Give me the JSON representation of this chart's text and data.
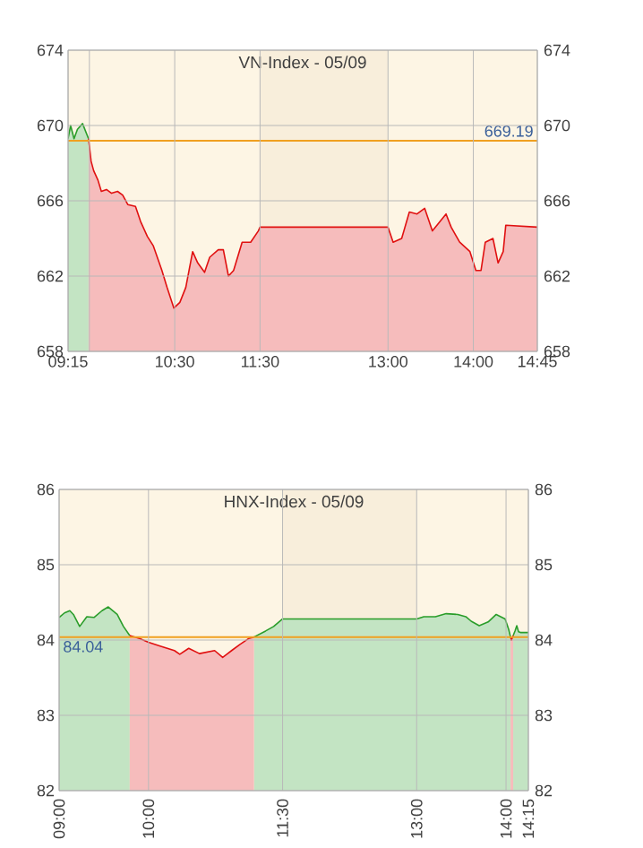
{
  "chart_data": [
    {
      "type": "area",
      "title": "VN-Index - 05/09",
      "xlim": [
        9.25,
        14.75
      ],
      "xticks": [
        {
          "value": 9.25,
          "label": "09:15"
        },
        {
          "value": 9.5,
          "label": null
        },
        {
          "value": 10.5,
          "label": "10:30"
        },
        {
          "value": 11.5,
          "label": "11:30"
        },
        {
          "value": 13,
          "label": "13:00"
        },
        {
          "value": 14,
          "label": "14:00"
        },
        {
          "value": 14.75,
          "label": "14:45"
        }
      ],
      "ylim": [
        658,
        674
      ],
      "yticks": [
        658,
        662,
        666,
        670,
        674
      ],
      "y2lim": [
        658,
        674
      ],
      "y2ticks": [
        658,
        662,
        666,
        670,
        674
      ],
      "grid": true,
      "bands": [
        {
          "axis": "x",
          "from": 11.5,
          "to": 13,
          "color": "#f8eedb"
        }
      ],
      "ref_lines": [
        {
          "axis": "y",
          "value": 669.19,
          "label": "669.19",
          "color": "#f0a020"
        }
      ],
      "series": [
        {
          "color": "#2a9d2a",
          "x": [
            9.25,
            9.28,
            9.32,
            9.36,
            9.42,
            9.49
          ],
          "values": [
            669.3,
            670.0,
            669.3,
            669.8,
            670.1,
            669.3
          ]
        },
        {
          "color": "#e01010",
          "x": [
            9.49,
            9.52,
            9.55,
            9.6,
            9.64,
            9.7,
            9.76,
            9.83,
            9.89,
            9.95,
            10.04,
            10.1,
            10.18,
            10.25,
            10.35,
            10.41,
            10.49,
            10.56,
            10.63,
            10.71,
            10.77,
            10.85,
            10.91,
            11.01,
            11.07,
            11.13,
            11.19,
            11.29,
            11.39,
            11.48,
            11.5,
            13.0,
            13.06,
            13.16,
            13.25,
            13.34,
            13.43,
            13.52,
            13.68,
            13.74,
            13.84,
            13.96,
            14.03,
            14.09,
            14.14,
            14.23,
            14.29,
            14.35,
            14.38,
            14.75
          ],
          "values": [
            669.3,
            668.1,
            667.6,
            667.1,
            666.5,
            666.6,
            666.4,
            666.5,
            666.3,
            665.8,
            665.7,
            664.9,
            664.1,
            663.6,
            662.3,
            661.4,
            660.3,
            660.6,
            661.4,
            663.3,
            662.7,
            662.2,
            663.0,
            663.4,
            663.4,
            662.0,
            662.3,
            663.8,
            663.8,
            664.4,
            664.6,
            664.6,
            663.8,
            664.0,
            665.4,
            665.3,
            665.6,
            664.4,
            665.3,
            664.6,
            663.8,
            663.3,
            662.3,
            662.3,
            663.8,
            664.0,
            662.7,
            663.3,
            664.7,
            664.6
          ]
        }
      ]
    },
    {
      "type": "area",
      "title": "HNX-Index - 05/09",
      "xlim": [
        9,
        14.25
      ],
      "xticks": [
        {
          "value": 9,
          "label": "09:00"
        },
        {
          "value": 10,
          "label": "10:00"
        },
        {
          "value": 11.5,
          "label": "11:30"
        },
        {
          "value": 13,
          "label": "13:00"
        },
        {
          "value": 14,
          "label": "14:00"
        },
        {
          "value": 14.25,
          "label": "14:15"
        }
      ],
      "ylim": [
        82,
        86
      ],
      "yticks": [
        82,
        83,
        84,
        85,
        86
      ],
      "y2lim": [
        82,
        86
      ],
      "y2ticks": [
        82,
        83,
        84,
        85,
        86
      ],
      "grid": true,
      "bands": [
        {
          "axis": "x",
          "from": 11.5,
          "to": 13,
          "color": "#f8eedb"
        }
      ],
      "ref_lines": [
        {
          "axis": "y",
          "value": 84.04,
          "label": "84.04",
          "color": "#f0a020"
        }
      ],
      "series": [
        {
          "color": "#2a9d2a",
          "x": [
            9.0,
            9.06,
            9.12,
            9.16,
            9.23,
            9.31,
            9.39,
            9.48,
            9.55,
            9.65,
            9.72,
            9.79,
            9.86,
            11.18,
            11.31,
            11.4,
            11.5,
            13.0,
            13.08,
            13.21,
            13.33,
            13.46,
            13.55,
            13.61,
            13.7,
            13.8,
            13.89,
            13.99,
            14.03,
            14.05,
            14.06,
            14.08,
            14.1,
            14.12,
            14.14,
            14.16,
            14.25
          ],
          "values": [
            84.3,
            84.36,
            84.39,
            84.34,
            84.18,
            84.31,
            84.3,
            84.39,
            84.44,
            84.34,
            84.18,
            84.06,
            null,
            84.04,
            84.12,
            84.18,
            84.28,
            84.28,
            84.31,
            84.31,
            84.35,
            84.34,
            84.31,
            84.25,
            84.19,
            84.24,
            84.34,
            84.28,
            84.14,
            84.04,
            null,
            84.06,
            84.12,
            84.19,
            84.11,
            84.1,
            84.1
          ]
        },
        {
          "color": "#e01010",
          "x": [
            9.79,
            9.9,
            10.0,
            10.13,
            10.29,
            10.35,
            10.45,
            10.57,
            10.74,
            10.83,
            10.93,
            11.02,
            11.12,
            11.18,
            12.5,
            14.05,
            14.06,
            14.08
          ],
          "values": [
            84.06,
            84.02,
            83.97,
            83.92,
            83.86,
            83.81,
            83.89,
            83.82,
            83.86,
            83.77,
            83.86,
            83.94,
            84.02,
            84.04,
            null,
            84.04,
            84.0,
            84.06
          ]
        }
      ]
    }
  ]
}
